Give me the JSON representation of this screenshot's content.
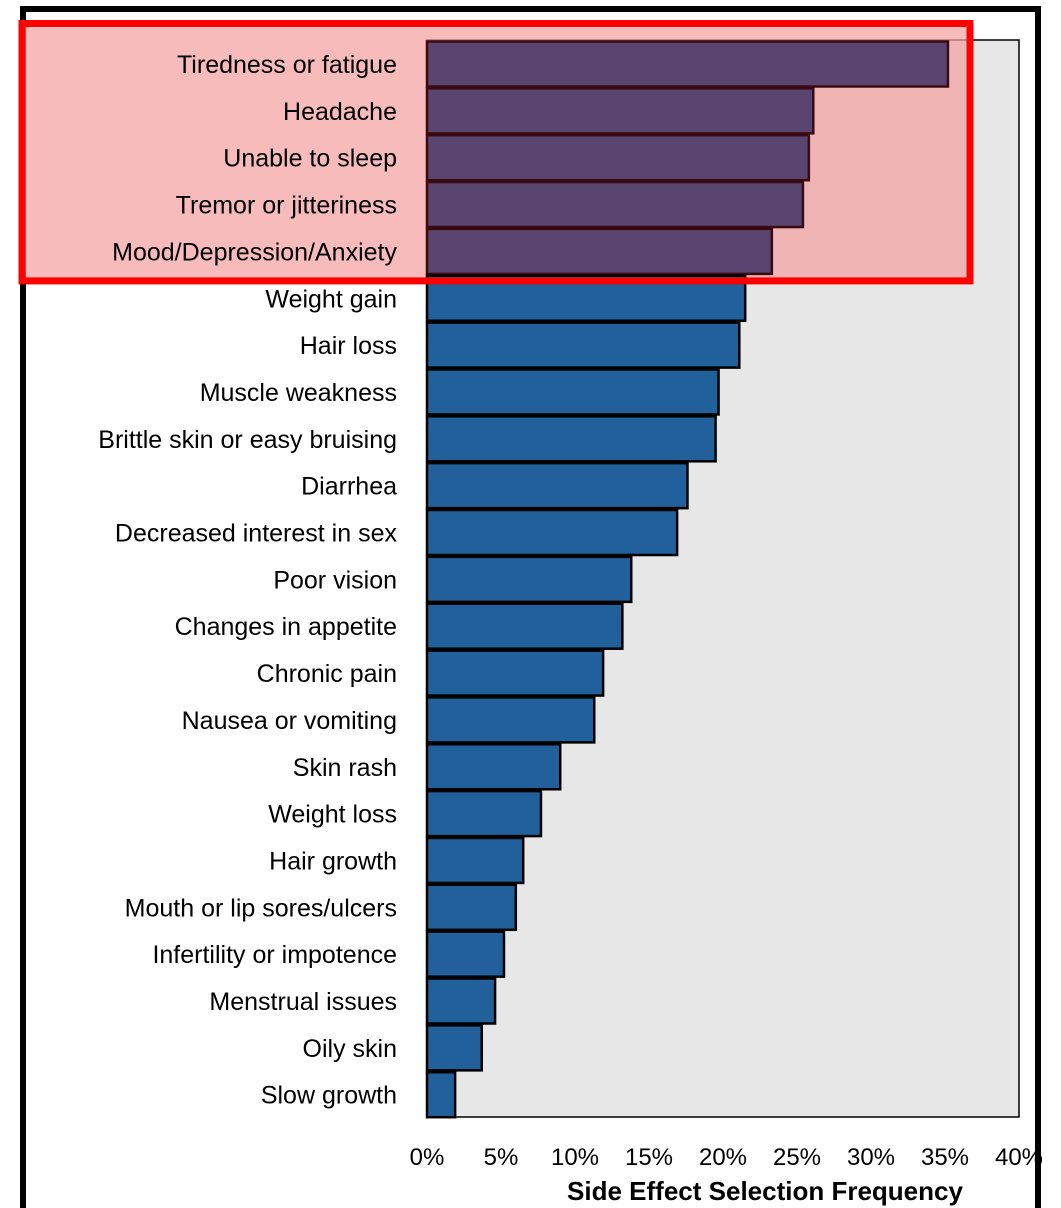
{
  "chart_data": {
    "type": "bar",
    "orientation": "horizontal",
    "title": "",
    "xlabel": "Side Effect Selection Frequency",
    "ylabel": "",
    "xlim": [
      0,
      40
    ],
    "x_ticks": [
      "0%",
      "5%",
      "10%",
      "15%",
      "20%",
      "25%",
      "30%",
      "35%",
      "40%"
    ],
    "categories": [
      "Tiredness or fatigue",
      "Headache",
      "Unable to sleep",
      "Tremor or jitteriness",
      "Mood/Depression/Anxiety",
      "Weight gain",
      "Hair loss",
      "Muscle weakness",
      "Brittle skin or easy bruising",
      "Diarrhea",
      "Decreased interest in sex",
      "Poor vision",
      "Changes in appetite",
      "Chronic pain",
      "Nausea or vomiting",
      "Skin rash",
      "Weight loss",
      "Hair growth",
      "Mouth or lip sores/ulcers",
      "Infertility or impotence",
      "Menstrual issues",
      "Oily skin",
      "Slow growth"
    ],
    "values": [
      35.2,
      26.1,
      25.8,
      25.4,
      23.3,
      21.5,
      21.1,
      19.7,
      19.5,
      17.6,
      16.9,
      13.8,
      13.2,
      11.9,
      11.3,
      9.0,
      7.7,
      6.5,
      6.0,
      5.2,
      4.6,
      3.7,
      1.9
    ],
    "highlighted_count": 5,
    "grid": false,
    "legend": "none",
    "colors": {
      "bar": "#22609c",
      "bar_highlighted": "#5a4571",
      "plot_bg": "#e7e7e7",
      "highlight_fill": "#f4a1a1",
      "highlight_border": "#ff0000",
      "bar_outline": "#000000"
    }
  }
}
